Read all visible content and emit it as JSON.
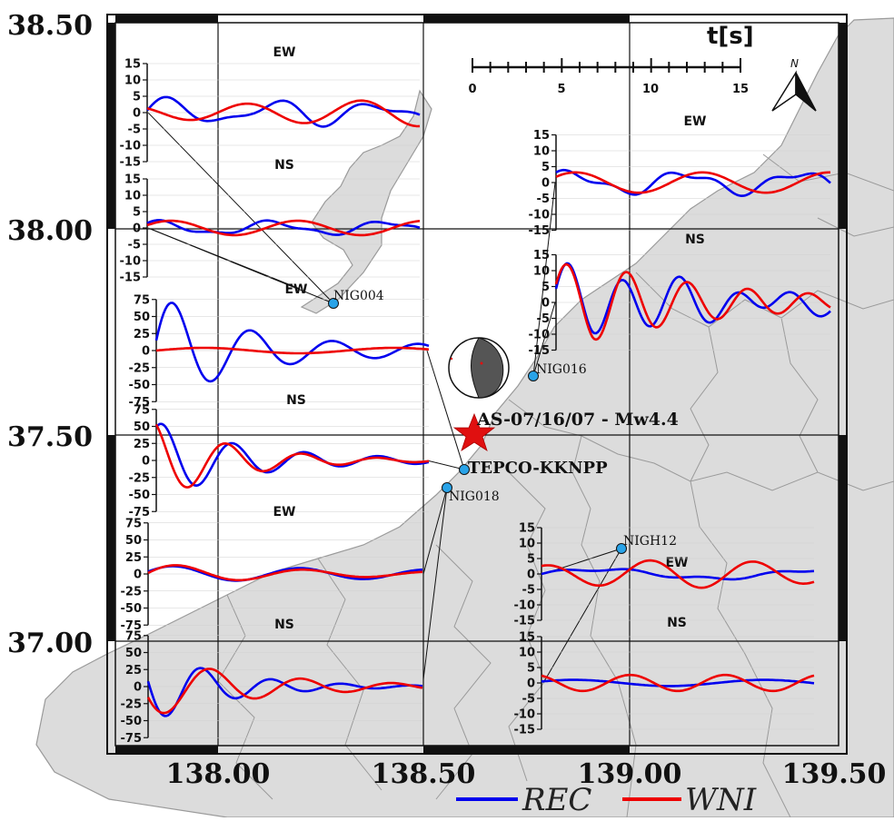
{
  "map": {
    "lat_labels": [
      "38.50",
      "38.00",
      "37.50",
      "37.00"
    ],
    "lon_labels": [
      "138.00",
      "138.50",
      "139.00",
      "139.50"
    ],
    "event_label": "AS-07/16/07 - Mw4.4",
    "site_label": "TEPCO-KKNPP",
    "stations": [
      "NIG004",
      "NIG016",
      "NIG018",
      "NIGH12"
    ],
    "north_label": "N",
    "time_scale": {
      "unit_label": "t[s]",
      "tick_labels": [
        "0",
        "5",
        "10",
        "15"
      ]
    },
    "legend": [
      {
        "label": "REC",
        "color": "#0000ee"
      },
      {
        "label": "WNI",
        "color": "#ee0000"
      }
    ],
    "colors": {
      "land": "#dcdcdc",
      "sea": "#ffffff",
      "grid": "#111111",
      "event": "#e01010",
      "station": "#29a3e8"
    }
  },
  "panels": [
    {
      "station": "NIG004",
      "component": "EW",
      "axis_ticks": [
        "15",
        "10",
        "5",
        "0",
        "-5",
        "-10",
        "-15"
      ]
    },
    {
      "station": "NIG004",
      "component": "NS",
      "axis_ticks": [
        "15",
        "10",
        "5",
        "0",
        "-5",
        "-10",
        "-15"
      ]
    },
    {
      "station": "NIG018",
      "component": "EW",
      "axis_ticks": [
        "75",
        "50",
        "25",
        "0",
        "-25",
        "-50",
        "-75"
      ]
    },
    {
      "station": "NIG018",
      "component": "NS",
      "axis_ticks": [
        "75",
        "50",
        "25",
        "0",
        "-25",
        "-50",
        "-75"
      ]
    },
    {
      "station": "NIG016",
      "component": "EW",
      "axis_ticks": [
        "15",
        "10",
        "5",
        "0",
        "-5",
        "-10",
        "-15"
      ]
    },
    {
      "station": "NIG016",
      "component": "NS",
      "axis_ticks": [
        "15",
        "10",
        "5",
        "0",
        "-5",
        "-10",
        "-15"
      ]
    },
    {
      "station": "TEPCO-KKNPP",
      "component": "EW",
      "axis_ticks": [
        "75",
        "50",
        "25",
        "0",
        "-25",
        "-50",
        "-75"
      ]
    },
    {
      "station": "TEPCO-KKNPP",
      "component": "NS",
      "axis_ticks": [
        "75",
        "50",
        "25",
        "0",
        "-25",
        "-50",
        "-75"
      ]
    },
    {
      "station": "NIGH12",
      "component": "EW",
      "axis_ticks": [
        "15",
        "10",
        "5",
        "0",
        "-5",
        "-10",
        "-15"
      ]
    },
    {
      "station": "NIGH12",
      "component": "NS",
      "axis_ticks": [
        "15",
        "10",
        "5",
        "0",
        "-5",
        "-10",
        "-15"
      ]
    }
  ]
}
